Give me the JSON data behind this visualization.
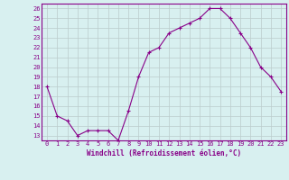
{
  "x": [
    0,
    1,
    2,
    3,
    4,
    5,
    6,
    7,
    8,
    9,
    10,
    11,
    12,
    13,
    14,
    15,
    16,
    17,
    18,
    19,
    20,
    21,
    22,
    23
  ],
  "y": [
    18,
    15,
    14.5,
    13,
    13.5,
    13.5,
    13.5,
    12.5,
    15.5,
    19,
    21.5,
    22,
    23.5,
    24,
    24.5,
    25,
    26,
    26,
    25,
    23.5,
    22,
    20,
    19,
    17.5
  ],
  "line_color": "#880088",
  "marker": "+",
  "marker_size": 3,
  "bg_color": "#d8f0f0",
  "grid_color": "#bbcccc",
  "xlabel": "Windchill (Refroidissement éolien,°C)",
  "xlim": [
    -0.5,
    23.5
  ],
  "ylim": [
    12.5,
    26.5
  ],
  "yticks": [
    13,
    14,
    15,
    16,
    17,
    18,
    19,
    20,
    21,
    22,
    23,
    24,
    25,
    26
  ],
  "xticks": [
    0,
    1,
    2,
    3,
    4,
    5,
    6,
    7,
    8,
    9,
    10,
    11,
    12,
    13,
    14,
    15,
    16,
    17,
    18,
    19,
    20,
    21,
    22,
    23
  ]
}
